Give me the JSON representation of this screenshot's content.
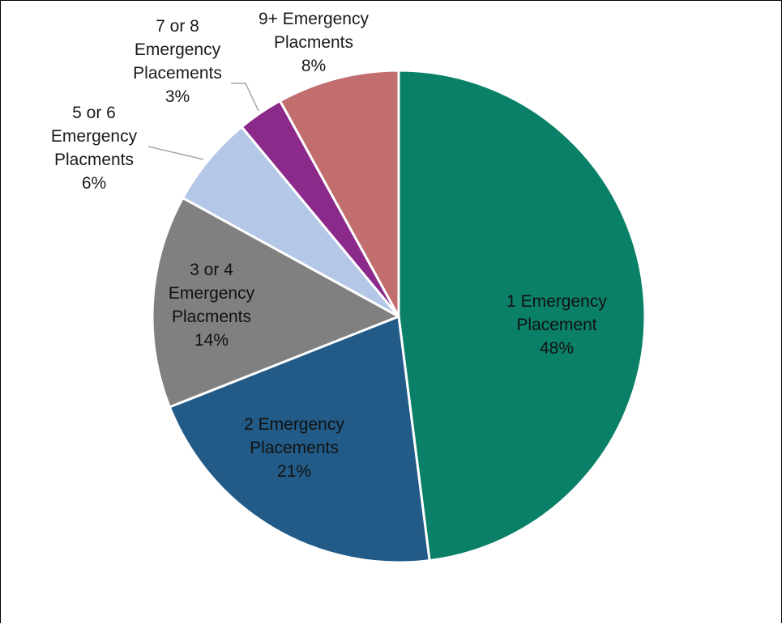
{
  "chart_data": {
    "type": "pie",
    "title": "",
    "start_angle_deg": 0,
    "direction": "clockwise",
    "slices": [
      {
        "label_lines": [
          "1 Emergency",
          "Placement"
        ],
        "pct_label": "48%",
        "value": 48,
        "color": "#0b8068",
        "label_pos": "inside"
      },
      {
        "label_lines": [
          "2 Emergency",
          "Placements"
        ],
        "pct_label": "21%",
        "value": 21,
        "color": "#225b87",
        "label_pos": "inside"
      },
      {
        "label_lines": [
          "3 or 4",
          "Emergency",
          "Placments"
        ],
        "pct_label": "14%",
        "value": 14,
        "color": "#808080",
        "label_pos": "inside"
      },
      {
        "label_lines": [
          "5 or 6",
          "Emergency",
          "Placments"
        ],
        "pct_label": "6%",
        "value": 6,
        "color": "#b4c7e7",
        "label_pos": "outside"
      },
      {
        "label_lines": [
          "7 or 8",
          "Emergency",
          "Placements"
        ],
        "pct_label": "3%",
        "value": 3,
        "color": "#8b2a8b",
        "label_pos": "outside"
      },
      {
        "label_lines": [
          "9+ Emergency",
          "Placments"
        ],
        "pct_label": "8%",
        "value": 8,
        "color": "#c26e6e",
        "label_pos": "outside"
      }
    ]
  }
}
